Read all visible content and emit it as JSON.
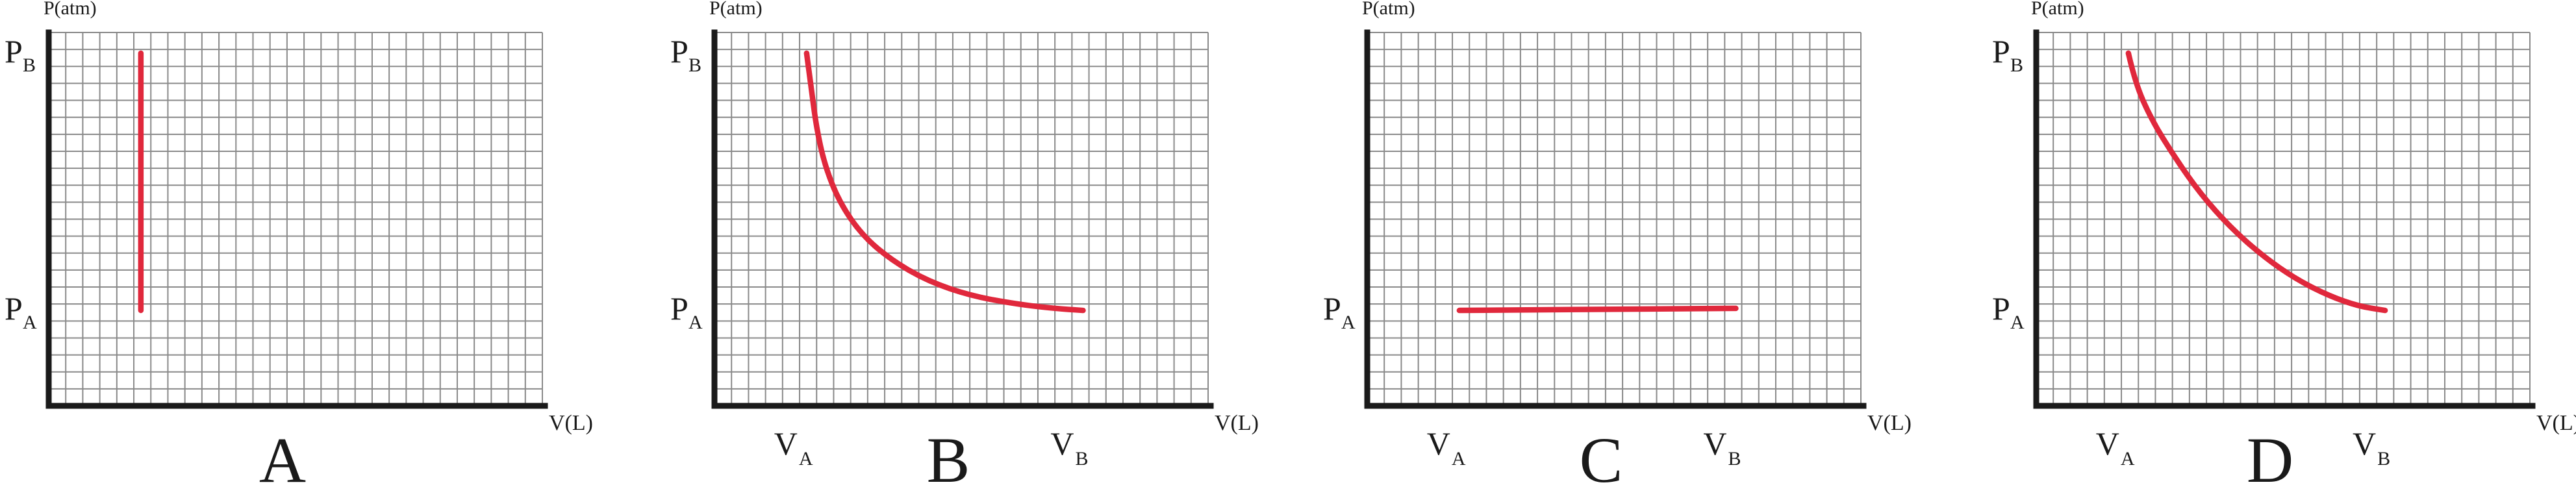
{
  "chart_data": [
    {
      "type": "line",
      "panel_label": "A",
      "y_axis_label": "P(atm)",
      "x_axis_label": "V(L)",
      "y_ticks": [
        {
          "symbol": "P",
          "sub": "B",
          "value": 8.5
        },
        {
          "symbol": "P",
          "sub": "A",
          "value": 2.3
        }
      ],
      "x_ticks": [],
      "series": [
        {
          "points": [
            [
              2.8,
              2.3
            ],
            [
              2.8,
              8.5
            ]
          ],
          "color": "#e0283c"
        }
      ],
      "xlim": [
        0,
        15
      ],
      "ylim": [
        0,
        9
      ],
      "grid": true
    },
    {
      "type": "line",
      "panel_label": "B",
      "y_axis_label": "P(atm)",
      "x_axis_label": "V(L)",
      "y_ticks": [
        {
          "symbol": "P",
          "sub": "B",
          "value": 8.5
        },
        {
          "symbol": "P",
          "sub": "A",
          "value": 2.3
        }
      ],
      "x_ticks": [
        {
          "symbol": "V",
          "sub": "A",
          "value": 2.8
        },
        {
          "symbol": "V",
          "sub": "B",
          "value": 11.2
        }
      ],
      "series": [
        {
          "points": [
            [
              2.8,
              8.5
            ],
            [
              2.95,
              7.6
            ],
            [
              3.1,
              6.7
            ],
            [
              3.35,
              5.8
            ],
            [
              3.8,
              4.9
            ],
            [
              4.5,
              4.1
            ],
            [
              5.4,
              3.5
            ],
            [
              6.5,
              3.0
            ],
            [
              7.8,
              2.65
            ],
            [
              9.2,
              2.45
            ],
            [
              10.3,
              2.35
            ],
            [
              11.2,
              2.3
            ]
          ],
          "color": "#e0283c"
        }
      ],
      "xlim": [
        0,
        15
      ],
      "ylim": [
        0,
        9
      ],
      "grid": true
    },
    {
      "type": "line",
      "panel_label": "C",
      "y_axis_label": "P(atm)",
      "x_axis_label": "V(L)",
      "y_ticks": [
        {
          "symbol": "P",
          "sub": "A",
          "value": 2.3
        }
      ],
      "x_ticks": [
        {
          "symbol": "V",
          "sub": "A",
          "value": 2.8
        },
        {
          "symbol": "V",
          "sub": "B",
          "value": 11.2
        }
      ],
      "series": [
        {
          "points": [
            [
              2.8,
              2.3
            ],
            [
              11.2,
              2.35
            ]
          ],
          "color": "#e0283c"
        }
      ],
      "xlim": [
        0,
        15
      ],
      "ylim": [
        0,
        9
      ],
      "grid": true
    },
    {
      "type": "line",
      "panel_label": "D",
      "y_axis_label": "P(atm)",
      "x_axis_label": "V(L)",
      "y_ticks": [
        {
          "symbol": "P",
          "sub": "B",
          "value": 8.5
        },
        {
          "symbol": "P",
          "sub": "A",
          "value": 2.3
        }
      ],
      "x_ticks": [
        {
          "symbol": "V",
          "sub": "A",
          "value": 2.8
        },
        {
          "symbol": "V",
          "sub": "B",
          "value": 10.6
        }
      ],
      "series": [
        {
          "points": [
            [
              2.8,
              8.5
            ],
            [
              3.0,
              7.8
            ],
            [
              3.5,
              6.9
            ],
            [
              4.2,
              6.0
            ],
            [
              5.0,
              5.1
            ],
            [
              5.9,
              4.3
            ],
            [
              6.9,
              3.6
            ],
            [
              7.9,
              3.05
            ],
            [
              8.9,
              2.65
            ],
            [
              9.8,
              2.4
            ],
            [
              10.6,
              2.3
            ]
          ],
          "color": "#e0283c"
        }
      ],
      "xlim": [
        0,
        15
      ],
      "ylim": [
        0,
        9
      ],
      "grid": true
    }
  ]
}
